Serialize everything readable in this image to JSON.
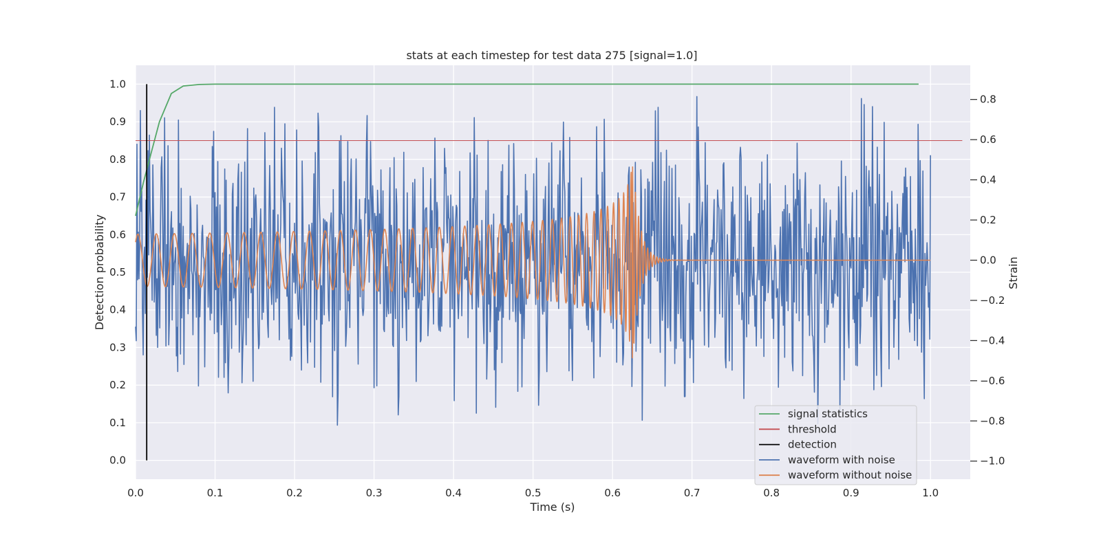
{
  "chart_data": {
    "type": "line",
    "title": "stats at each timestep for test data 275 [signal=1.0]",
    "xlabel": "Time (s)",
    "ylabel_left": "Detection probability",
    "ylabel_right": "Strain",
    "xlim": [
      0.0,
      1.05
    ],
    "ylim_left": [
      -0.05,
      1.05
    ],
    "ylim_right": [
      -1.09,
      0.97
    ],
    "xticks": [
      "0.0",
      "0.1",
      "0.2",
      "0.3",
      "0.4",
      "0.5",
      "0.6",
      "0.7",
      "0.8",
      "0.9",
      "1.0"
    ],
    "yticks_left": [
      "0.0",
      "0.1",
      "0.2",
      "0.3",
      "0.4",
      "0.5",
      "0.6",
      "0.7",
      "0.8",
      "0.9",
      "1.0"
    ],
    "yticks_right": [
      "−1.0",
      "−0.8",
      "−0.6",
      "−0.4",
      "−0.2",
      "0.0",
      "0.2",
      "0.4",
      "0.6",
      "0.8"
    ],
    "grid": true,
    "legend_position": "lower-right",
    "series": [
      {
        "name": "signal statistics",
        "axis": "left",
        "color": "#55a868",
        "x": [
          0.0,
          0.01,
          0.02,
          0.03,
          0.045,
          0.06,
          0.08,
          0.1,
          0.3,
          0.5,
          0.7,
          0.9,
          0.985
        ],
        "y": [
          0.65,
          0.74,
          0.82,
          0.9,
          0.975,
          0.995,
          0.999,
          1.0,
          1.0,
          1.0,
          1.0,
          1.0,
          1.0
        ]
      },
      {
        "name": "threshold",
        "axis": "left",
        "color": "#c44e52",
        "x": [
          0.0,
          1.04
        ],
        "y": [
          0.85,
          0.85
        ]
      },
      {
        "name": "detection",
        "axis": "left",
        "color": "#000000",
        "x": [
          0.014,
          0.014
        ],
        "y": [
          0.0,
          1.0
        ]
      },
      {
        "name": "waveform with noise",
        "axis": "right",
        "color": "#4c72b0",
        "description": "noisy strain, roughly -0.85 to 0.88 over 0-1.0 s",
        "x_range": [
          0.0,
          1.0
        ],
        "amplitude_range": [
          -0.85,
          0.88
        ]
      },
      {
        "name": "waveform without noise",
        "axis": "right",
        "color": "#dd8452",
        "description": "chirp with amplitude growing from ~0.13 to ~0.52, peak (merger) near 0.625 s, ringdown to 0 by ~0.66 s",
        "x_range": [
          0.0,
          1.0
        ],
        "merger_time": 0.625,
        "peak_amplitude": 0.52
      }
    ]
  }
}
